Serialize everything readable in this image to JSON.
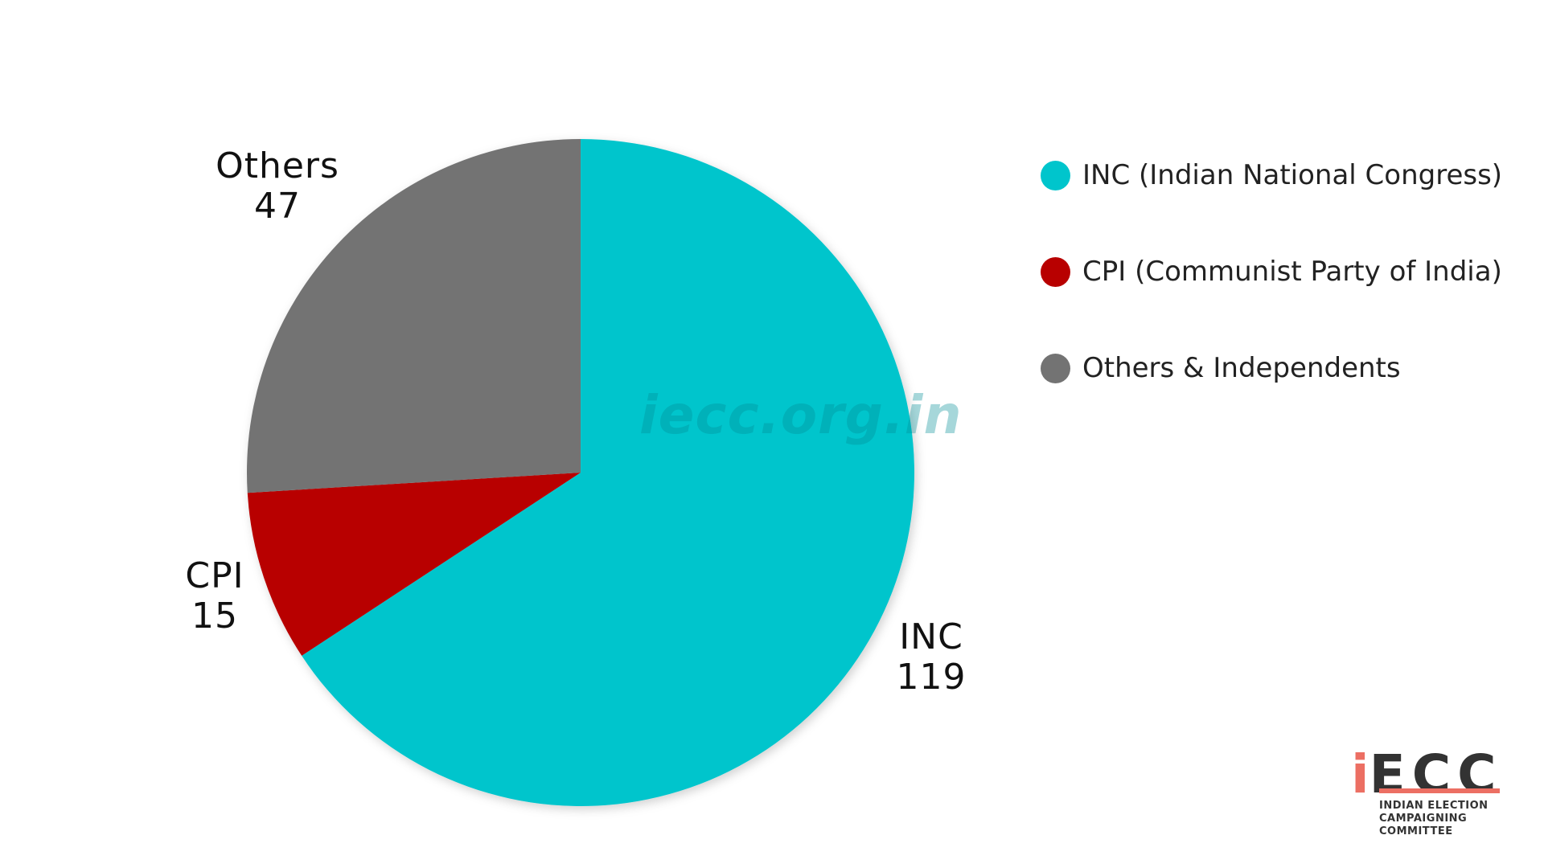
{
  "chart_data": {
    "type": "pie",
    "categories": [
      "INC",
      "CPI",
      "Others"
    ],
    "values": [
      119,
      15,
      47
    ],
    "legend": [
      "INC (Indian National Congress)",
      "CPI (Communist Party of India)",
      "Others & Independents"
    ],
    "legend_position": "right",
    "title": ""
  },
  "colors": {
    "INC": "#00c5cc",
    "CPI": "#b80000",
    "Others": "#737373"
  },
  "watermark": "iecc.org.in",
  "logo": {
    "mark_i": "i",
    "mark_rest": "ECC",
    "line1": "INDIAN ELECTION",
    "line2": "CAMPAIGNING COMMITTEE"
  }
}
